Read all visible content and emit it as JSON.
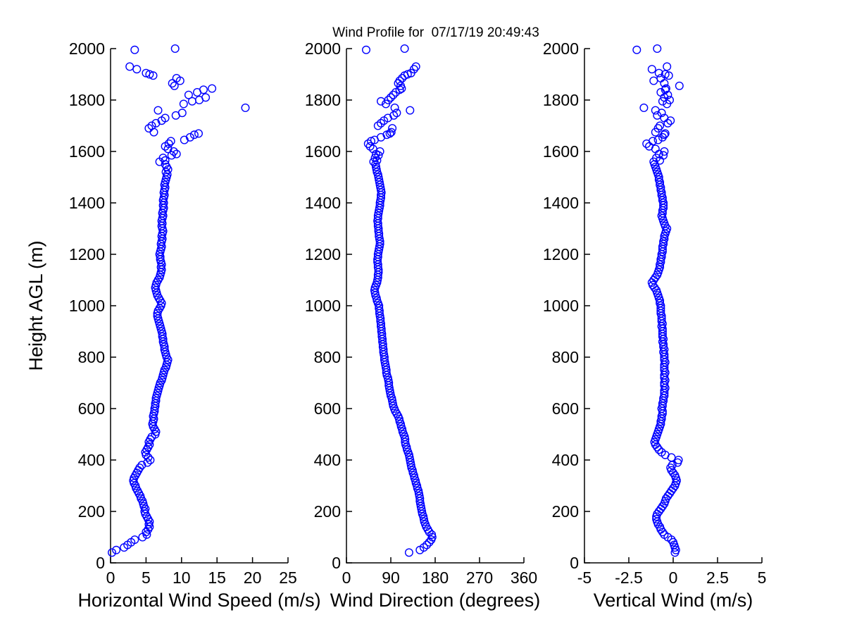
{
  "figure": {
    "background": "#ffffff",
    "text_color": "#000000"
  },
  "chart_data": {
    "type": "scatter",
    "title": "Wind Profile for  07/17/19 20:49:43",
    "ylabel": "Height AGL (m)",
    "ylim": [
      0,
      2000
    ],
    "yticks": [
      0,
      200,
      400,
      600,
      800,
      1000,
      1200,
      1400,
      1600,
      1800,
      2000
    ],
    "grid": false,
    "legend": "none",
    "marker": {
      "shape": "open-circle",
      "color": "#0000FF"
    },
    "panels": [
      {
        "id": "horizontal-wind-speed",
        "xlabel": "Horizontal Wind Speed (m/s)",
        "xlim": [
          0,
          25
        ],
        "xticks": [
          0,
          5,
          10,
          15,
          20,
          25
        ],
        "field": "ws"
      },
      {
        "id": "wind-direction",
        "xlabel": "Wind Direction (degrees)",
        "xlim": [
          0,
          360
        ],
        "xticks": [
          0,
          90,
          180,
          270,
          360
        ],
        "field": "wd"
      },
      {
        "id": "vertical-wind",
        "xlabel": "Vertical Wind (m/s)",
        "xlim": [
          -5,
          5
        ],
        "xticks": [
          -5,
          -2.5,
          0,
          2.5,
          5
        ],
        "field": "w"
      }
    ],
    "profile": {
      "columns": [
        "height_m",
        "ws",
        "wd",
        "w"
      ],
      "rows": [
        [
          40,
          0.2,
          127,
          0.1
        ],
        [
          50,
          0.8,
          149,
          0.15
        ],
        [
          60,
          1.9,
          157,
          0.1
        ],
        [
          70,
          2.4,
          163,
          0.05
        ],
        [
          80,
          2.9,
          168,
          0
        ],
        [
          90,
          3.4,
          172,
          -0.1
        ],
        [
          100,
          4.5,
          174,
          -0.3
        ],
        [
          110,
          5.1,
          173,
          -0.5
        ],
        [
          120,
          5,
          168,
          -0.6
        ],
        [
          130,
          5.3,
          165,
          -0.7
        ],
        [
          140,
          5.5,
          162,
          -0.75
        ],
        [
          150,
          5.4,
          160,
          -0.85
        ],
        [
          160,
          5.5,
          158,
          -0.9
        ],
        [
          170,
          5.3,
          157,
          -0.95
        ],
        [
          180,
          5.1,
          156,
          -0.95
        ],
        [
          190,
          4.9,
          154,
          -0.9
        ],
        [
          200,
          4.8,
          153,
          -0.8
        ],
        [
          210,
          4.9,
          152,
          -0.7
        ],
        [
          220,
          4.7,
          151,
          -0.6
        ],
        [
          230,
          4.6,
          150,
          -0.5
        ],
        [
          240,
          4.5,
          149,
          -0.45
        ],
        [
          250,
          4.3,
          149,
          -0.4
        ],
        [
          260,
          4.2,
          148,
          -0.3
        ],
        [
          270,
          4,
          147,
          -0.2
        ],
        [
          280,
          3.8,
          146,
          -0.1
        ],
        [
          290,
          3.6,
          144,
          0
        ],
        [
          300,
          3.5,
          143,
          0.1
        ],
        [
          310,
          3.3,
          141,
          0.15
        ],
        [
          320,
          3.2,
          140,
          0.2
        ],
        [
          330,
          3.3,
          138,
          0.15
        ],
        [
          340,
          3.5,
          137,
          0.1
        ],
        [
          350,
          3.7,
          135,
          0
        ],
        [
          360,
          3.9,
          134,
          -0.1
        ],
        [
          370,
          4.1,
          132,
          -0.15
        ],
        [
          380,
          4.4,
          131,
          -0.05
        ],
        [
          390,
          5.2,
          130,
          0.25
        ],
        [
          400,
          5.6,
          129,
          0.3
        ],
        [
          410,
          5.3,
          128,
          -0.1
        ],
        [
          420,
          5,
          127,
          -0.45
        ],
        [
          430,
          4.9,
          125,
          -0.65
        ],
        [
          440,
          5.1,
          123,
          -0.8
        ],
        [
          450,
          5.3,
          122,
          -0.9
        ],
        [
          460,
          5.5,
          120,
          -1
        ],
        [
          470,
          5.4,
          119,
          -1.05
        ],
        [
          480,
          5.6,
          119,
          -1
        ],
        [
          490,
          5.8,
          118,
          -0.95
        ],
        [
          500,
          6.3,
          116,
          -0.9
        ],
        [
          510,
          6.4,
          114,
          -0.85
        ],
        [
          520,
          6.2,
          113,
          -0.8
        ],
        [
          530,
          6,
          111,
          -0.75
        ],
        [
          540,
          5.9,
          110,
          -0.7
        ],
        [
          550,
          6,
          108,
          -0.7
        ],
        [
          560,
          6.1,
          107,
          -0.65
        ],
        [
          570,
          6,
          105,
          -0.65
        ],
        [
          580,
          6.1,
          102,
          -0.6
        ],
        [
          590,
          6.2,
          99,
          -0.6
        ],
        [
          600,
          6.2,
          97,
          -0.65
        ],
        [
          610,
          6.3,
          95,
          -0.6
        ],
        [
          620,
          6.3,
          94,
          -0.6
        ],
        [
          630,
          6.4,
          93,
          -0.55
        ],
        [
          640,
          6.4,
          92,
          -0.55
        ],
        [
          650,
          6.5,
          90,
          -0.5
        ],
        [
          660,
          6.6,
          89,
          -0.5
        ],
        [
          670,
          6.7,
          88,
          -0.5
        ],
        [
          680,
          6.8,
          87,
          -0.45
        ],
        [
          690,
          6.9,
          86,
          -0.5
        ],
        [
          700,
          7,
          86,
          -0.5
        ],
        [
          710,
          7.2,
          85,
          -0.45
        ],
        [
          720,
          7.3,
          84,
          -0.5
        ],
        [
          730,
          7.4,
          82,
          -0.5
        ],
        [
          740,
          7.5,
          81,
          -0.45
        ],
        [
          750,
          7.6,
          81,
          -0.5
        ],
        [
          760,
          7.8,
          80,
          -0.5
        ],
        [
          770,
          7.9,
          79,
          -0.5
        ],
        [
          780,
          8,
          78,
          -0.45
        ],
        [
          790,
          8.1,
          77,
          -0.5
        ],
        [
          800,
          7.9,
          77,
          -0.5
        ],
        [
          810,
          7.8,
          76,
          -0.5
        ],
        [
          820,
          7.7,
          75,
          -0.55
        ],
        [
          830,
          7.6,
          75,
          -0.5
        ],
        [
          840,
          7.6,
          74,
          -0.55
        ],
        [
          850,
          7.5,
          74,
          -0.55
        ],
        [
          860,
          7.4,
          73,
          -0.6
        ],
        [
          870,
          7.4,
          73,
          -0.55
        ],
        [
          880,
          7.3,
          72,
          -0.6
        ],
        [
          890,
          7.3,
          72,
          -0.6
        ],
        [
          900,
          7.2,
          71,
          -0.6
        ],
        [
          910,
          7.1,
          71,
          -0.6
        ],
        [
          920,
          7,
          70,
          -0.65
        ],
        [
          930,
          6.9,
          70,
          -0.6
        ],
        [
          940,
          6.8,
          69,
          -0.65
        ],
        [
          950,
          6.7,
          69,
          -0.65
        ],
        [
          960,
          6.6,
          68,
          -0.65
        ],
        [
          970,
          6.6,
          67,
          -0.7
        ],
        [
          980,
          6.7,
          67,
          -0.7
        ],
        [
          990,
          6.9,
          66,
          -0.7
        ],
        [
          1000,
          7.1,
          66,
          -0.7
        ],
        [
          1010,
          7.2,
          64,
          -0.75
        ],
        [
          1020,
          7,
          62,
          -0.75
        ],
        [
          1030,
          6.8,
          61,
          -0.8
        ],
        [
          1040,
          6.6,
          59,
          -0.85
        ],
        [
          1050,
          6.5,
          58,
          -0.9
        ],
        [
          1060,
          6.4,
          57,
          -0.95
        ],
        [
          1070,
          6.3,
          58,
          -1.05
        ],
        [
          1080,
          6.4,
          60,
          -1.15
        ],
        [
          1090,
          6.5,
          62,
          -1.2
        ],
        [
          1100,
          6.7,
          63,
          -1.1
        ],
        [
          1110,
          6.9,
          64,
          -1
        ],
        [
          1120,
          7,
          64,
          -0.9
        ],
        [
          1130,
          7.1,
          65,
          -0.85
        ],
        [
          1140,
          7.2,
          65,
          -0.8
        ],
        [
          1150,
          7.1,
          64,
          -0.75
        ],
        [
          1160,
          7.2,
          64,
          -0.75
        ],
        [
          1170,
          7.1,
          63,
          -0.7
        ],
        [
          1180,
          7,
          63,
          -0.7
        ],
        [
          1190,
          7,
          64,
          -0.65
        ],
        [
          1200,
          6.9,
          64,
          -0.65
        ],
        [
          1210,
          7,
          65,
          -0.6
        ],
        [
          1220,
          7.1,
          66,
          -0.6
        ],
        [
          1230,
          7.2,
          67,
          -0.6
        ],
        [
          1240,
          7.1,
          68,
          -0.55
        ],
        [
          1250,
          7.2,
          68,
          -0.55
        ],
        [
          1260,
          7.3,
          67,
          -0.5
        ],
        [
          1270,
          7.2,
          66,
          -0.5
        ],
        [
          1280,
          7.3,
          66,
          -0.45
        ],
        [
          1290,
          7.4,
          65,
          -0.4
        ],
        [
          1300,
          7.3,
          65,
          -0.35
        ],
        [
          1310,
          7.2,
          64,
          -0.45
        ],
        [
          1320,
          7.3,
          64,
          -0.5
        ],
        [
          1330,
          7.2,
          63,
          -0.55
        ],
        [
          1340,
          7.3,
          64,
          -0.6
        ],
        [
          1350,
          7.4,
          64,
          -0.65
        ],
        [
          1360,
          7.3,
          65,
          -0.6
        ],
        [
          1370,
          7.4,
          66,
          -0.6
        ],
        [
          1380,
          7.5,
          67,
          -0.55
        ],
        [
          1390,
          7.4,
          68,
          -0.55
        ],
        [
          1400,
          7.5,
          68,
          -0.55
        ],
        [
          1410,
          7.4,
          69,
          -0.6
        ],
        [
          1420,
          7.5,
          70,
          -0.6
        ],
        [
          1430,
          7.6,
          70,
          -0.65
        ],
        [
          1440,
          7.5,
          71,
          -0.65
        ],
        [
          1450,
          7.6,
          70,
          -0.7
        ],
        [
          1460,
          7.7,
          69,
          -0.7
        ],
        [
          1470,
          7.6,
          68,
          -0.75
        ],
        [
          1480,
          7.7,
          67,
          -0.75
        ],
        [
          1490,
          7.8,
          66,
          -0.8
        ],
        [
          1500,
          7.9,
          65,
          -0.8
        ],
        [
          1510,
          8,
          64,
          -0.85
        ],
        [
          1520,
          7.8,
          62,
          -0.9
        ],
        [
          1530,
          8.1,
          61,
          -0.95
        ],
        [
          1540,
          7.9,
          60,
          -1
        ],
        [
          1550,
          7.7,
          59,
          -1.05
        ],
        [
          1560,
          6.9,
          55,
          -1.1
        ],
        [
          1565,
          7.7,
          62,
          -0.75
        ],
        [
          1575,
          7.4,
          58,
          -0.95
        ],
        [
          1585,
          8.6,
          65,
          -0.55
        ],
        [
          1590,
          9.3,
          60,
          -0.8
        ],
        [
          1600,
          8.9,
          68,
          -0.5
        ],
        [
          1610,
          8.1,
          54,
          -1
        ],
        [
          1620,
          7.7,
          48,
          -1.35
        ],
        [
          1630,
          8.2,
          44,
          -1.5
        ],
        [
          1640,
          8.5,
          50,
          -1.15
        ],
        [
          1645,
          10.4,
          57,
          -0.85
        ],
        [
          1655,
          11.2,
          70,
          -0.6
        ],
        [
          1665,
          11.8,
          82,
          -0.5
        ],
        [
          1670,
          12.4,
          88,
          -0.45
        ],
        [
          1675,
          6.1,
          91,
          -1
        ],
        [
          1690,
          5.4,
          93,
          -0.85
        ],
        [
          1700,
          5.8,
          64,
          -0.75
        ],
        [
          1710,
          6.4,
          70,
          -0.3
        ],
        [
          1720,
          7.2,
          76,
          -0.15
        ],
        [
          1730,
          7.7,
          84,
          -0.5
        ],
        [
          1740,
          9.2,
          96,
          -0.9
        ],
        [
          1750,
          10.1,
          102,
          -0.65
        ],
        [
          1760,
          6.7,
          129,
          -1
        ],
        [
          1770,
          19,
          98,
          -1.65
        ],
        [
          1785,
          10.3,
          80,
          -0.35
        ],
        [
          1795,
          11.5,
          70,
          -0.6
        ],
        [
          1800,
          12.5,
          85,
          -0.2
        ],
        [
          1810,
          13.4,
          90,
          -0.5
        ],
        [
          1820,
          11,
          95,
          -0.3
        ],
        [
          1830,
          12.2,
          100,
          -0.7
        ],
        [
          1840,
          13.1,
          108,
          -0.45
        ],
        [
          1845,
          14.3,
          112,
          -0.4
        ],
        [
          1855,
          9,
          110,
          0.35
        ],
        [
          1865,
          8.7,
          105,
          -0.5
        ],
        [
          1875,
          9.8,
          108,
          -1.1
        ],
        [
          1885,
          9.3,
          113,
          -0.7
        ],
        [
          1895,
          6,
          118,
          -0.25
        ],
        [
          1900,
          5.5,
          124,
          -0.45
        ],
        [
          1905,
          5,
          131,
          -0.8
        ],
        [
          1920,
          3.7,
          137,
          -1.2
        ],
        [
          1930,
          2.7,
          141,
          -0.35
        ],
        [
          1995,
          3.4,
          40,
          -2.05
        ],
        [
          2000,
          9.1,
          118,
          -0.9
        ]
      ]
    }
  }
}
